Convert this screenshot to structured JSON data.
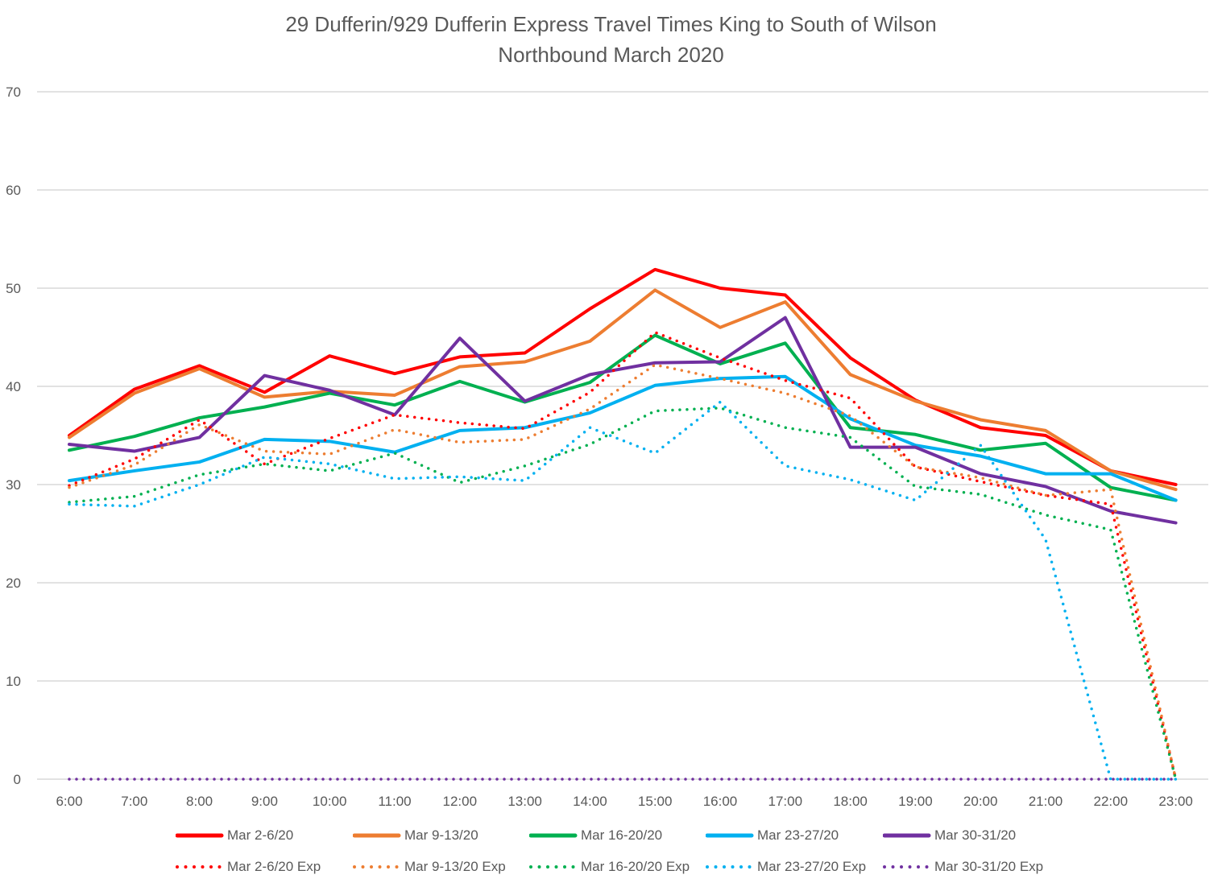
{
  "chart_data": {
    "type": "line",
    "title": "29 Dufferin/929 Dufferin Express Travel Times King to South of Wilson",
    "subtitle": "Northbound  March 2020",
    "xlabel": "",
    "ylabel": "",
    "ylim": [
      0,
      70
    ],
    "yticks": [
      0,
      10,
      20,
      30,
      40,
      50,
      60,
      70
    ],
    "grid": true,
    "legend_position": "bottom",
    "categories": [
      "6:00",
      "7:00",
      "8:00",
      "9:00",
      "10:00",
      "11:00",
      "12:00",
      "13:00",
      "14:00",
      "15:00",
      "16:00",
      "17:00",
      "18:00",
      "19:00",
      "20:00",
      "21:00",
      "22:00",
      "23:00"
    ],
    "series": [
      {
        "name": "Mar 2-6/20",
        "color": "#ff0000",
        "style": "solid",
        "values": [
          35.0,
          39.7,
          42.1,
          39.4,
          43.1,
          41.3,
          43.0,
          43.4,
          47.9,
          51.9,
          50.0,
          49.3,
          42.9,
          38.6,
          35.8,
          35.0,
          31.4,
          30.0
        ]
      },
      {
        "name": "Mar 9-13/20",
        "color": "#ed7d31",
        "style": "solid",
        "values": [
          34.8,
          39.3,
          41.8,
          38.9,
          39.5,
          39.1,
          42.0,
          42.5,
          44.6,
          49.8,
          46.0,
          48.6,
          41.2,
          38.5,
          36.6,
          35.5,
          31.4,
          29.5
        ]
      },
      {
        "name": "Mar 16-20/20",
        "color": "#00b050",
        "style": "solid",
        "values": [
          33.5,
          34.9,
          36.8,
          37.9,
          39.3,
          38.1,
          40.5,
          38.4,
          40.4,
          45.2,
          42.3,
          44.4,
          35.8,
          35.1,
          33.5,
          34.2,
          29.7,
          28.4
        ]
      },
      {
        "name": "Mar 23-27/20",
        "color": "#00b0f0",
        "style": "solid",
        "values": [
          30.4,
          31.4,
          32.3,
          34.6,
          34.4,
          33.3,
          35.5,
          35.8,
          37.3,
          40.1,
          40.8,
          41.0,
          36.7,
          34.0,
          32.9,
          31.1,
          31.1,
          28.4
        ]
      },
      {
        "name": "Mar 30-31/20",
        "color": "#7030a0",
        "style": "solid",
        "values": [
          34.1,
          33.4,
          34.8,
          41.1,
          39.6,
          37.1,
          44.9,
          38.5,
          41.2,
          42.4,
          42.5,
          47.0,
          33.8,
          33.8,
          31.1,
          29.8,
          27.3,
          26.1
        ]
      },
      {
        "name": "Mar 2-6/20 Exp",
        "color": "#ff0000",
        "style": "dotted",
        "values": [
          29.9,
          32.6,
          36.6,
          32.1,
          34.7,
          37.1,
          36.3,
          35.7,
          39.4,
          45.5,
          42.9,
          40.6,
          38.8,
          31.8,
          30.3,
          28.9,
          28.0,
          0
        ]
      },
      {
        "name": "Mar 9-13/20 Exp",
        "color": "#ed7d31",
        "style": "dotted",
        "values": [
          29.7,
          32.0,
          36.1,
          33.4,
          33.1,
          35.6,
          34.3,
          34.6,
          37.7,
          42.2,
          40.8,
          39.3,
          37.0,
          31.8,
          30.7,
          28.9,
          29.5,
          0
        ]
      },
      {
        "name": "Mar 16-20/20 Exp",
        "color": "#00b050",
        "style": "dotted",
        "values": [
          28.2,
          28.8,
          31.0,
          32.1,
          31.4,
          33.2,
          30.2,
          31.9,
          34.1,
          37.5,
          37.8,
          35.8,
          34.8,
          29.8,
          29.0,
          26.9,
          25.4,
          0
        ]
      },
      {
        "name": "Mar 23-27/20 Exp",
        "color": "#00b0f0",
        "style": "dotted",
        "values": [
          28.0,
          27.8,
          30.0,
          32.8,
          32.1,
          30.6,
          30.8,
          30.4,
          35.8,
          33.2,
          38.4,
          31.9,
          30.5,
          28.4,
          34.0,
          24.4,
          0,
          0
        ]
      },
      {
        "name": "Mar 30-31/20 Exp",
        "color": "#7030a0",
        "style": "dotted",
        "values": [
          0,
          0,
          0,
          0,
          0,
          0,
          0,
          0,
          0,
          0,
          0,
          0,
          0,
          0,
          0,
          0,
          0,
          0
        ]
      }
    ]
  }
}
